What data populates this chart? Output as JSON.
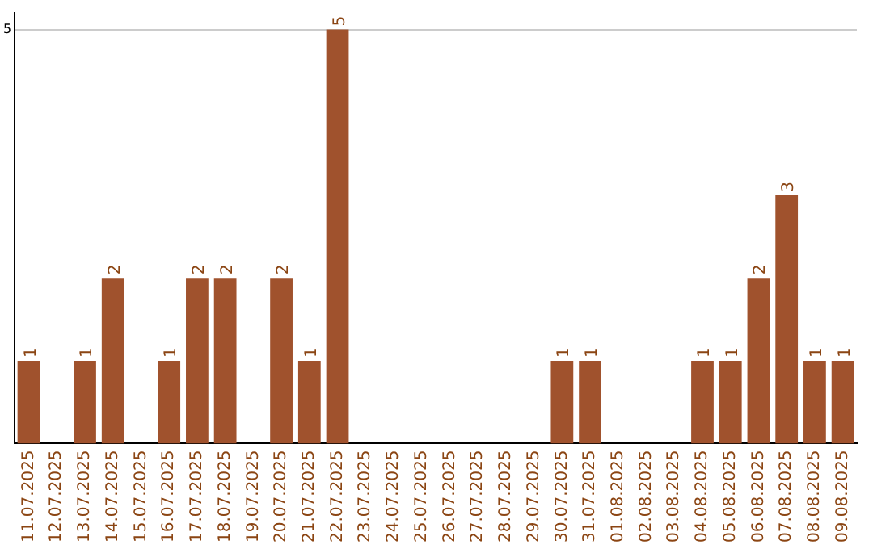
{
  "chart_data": {
    "type": "bar",
    "categories": [
      "11.07.2025",
      "12.07.2025",
      "13.07.2025",
      "14.07.2025",
      "15.07.2025",
      "16.07.2025",
      "17.07.2025",
      "18.07.2025",
      "19.07.2025",
      "20.07.2025",
      "21.07.2025",
      "22.07.2025",
      "23.07.2025",
      "24.07.2025",
      "25.07.2025",
      "26.07.2025",
      "27.07.2025",
      "28.07.2025",
      "29.07.2025",
      "30.07.2025",
      "31.07.2025",
      "01.08.2025",
      "02.08.2025",
      "03.08.2025",
      "04.08.2025",
      "05.08.2025",
      "06.08.2025",
      "07.08.2025",
      "08.08.2025",
      "09.08.2025"
    ],
    "values": [
      1,
      0,
      1,
      2,
      0,
      1,
      2,
      2,
      0,
      2,
      1,
      5,
      0,
      0,
      0,
      0,
      0,
      0,
      0,
      1,
      1,
      0,
      0,
      0,
      1,
      1,
      2,
      3,
      1,
      1
    ],
    "value_labels": [
      "1",
      null,
      "1",
      "2",
      null,
      "1",
      "2",
      "2",
      null,
      "2",
      "1",
      "5",
      null,
      null,
      null,
      null,
      null,
      null,
      null,
      "1",
      "1",
      null,
      null,
      null,
      "1",
      "1",
      "2",
      "3",
      "1",
      "1"
    ],
    "color": "#a0522d",
    "ylim": [
      0,
      5.2
    ],
    "yticks": [
      5
    ],
    "grid": "y",
    "legend": false
  }
}
